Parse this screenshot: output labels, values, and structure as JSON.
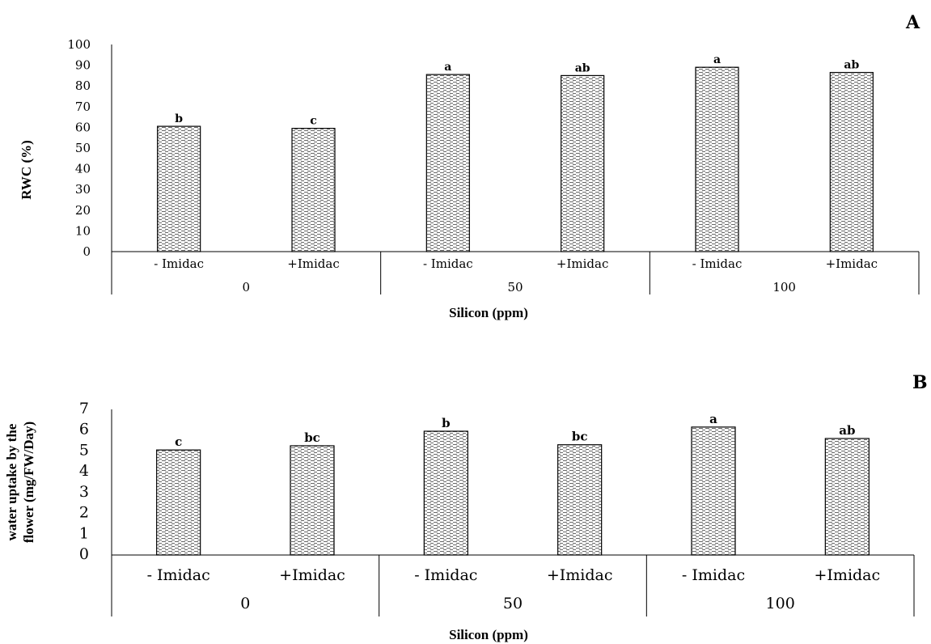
{
  "chart_data": [
    {
      "type": "bar",
      "panel": "A",
      "ylabel": "RWC (%)",
      "xlabel": "Silicon (ppm)",
      "ylim": [
        0,
        100
      ],
      "yticks": [
        0,
        10,
        20,
        30,
        40,
        50,
        60,
        70,
        80,
        90,
        100
      ],
      "categories": [
        "- Imidac",
        "+Imidac",
        "- Imidac",
        "+Imidac",
        "- Imidac",
        "+Imidac"
      ],
      "groups": [
        "0",
        "50",
        "100"
      ],
      "values": [
        60.5,
        59.5,
        85.5,
        85.0,
        89.0,
        86.5
      ],
      "significance": [
        "b",
        "c",
        "a",
        "ab",
        "a",
        "ab"
      ],
      "grid": false
    },
    {
      "type": "bar",
      "panel": "B",
      "ylabel_line1": "water uptake by the",
      "ylabel_line2": "flower (mg/FW/Day)",
      "xlabel": "Silicon (ppm)",
      "ylim": [
        0,
        7
      ],
      "yticks": [
        0,
        1,
        2,
        3,
        4,
        5,
        6,
        7
      ],
      "categories": [
        "- Imidac",
        "+Imidac",
        "- Imidac",
        "+Imidac",
        "- Imidac",
        "+Imidac"
      ],
      "groups": [
        "0",
        "50",
        "100"
      ],
      "values": [
        5.05,
        5.25,
        5.95,
        5.3,
        6.15,
        5.6
      ],
      "significance": [
        "c",
        "bc",
        "b",
        "bc",
        "a",
        "ab"
      ],
      "grid": false
    }
  ]
}
